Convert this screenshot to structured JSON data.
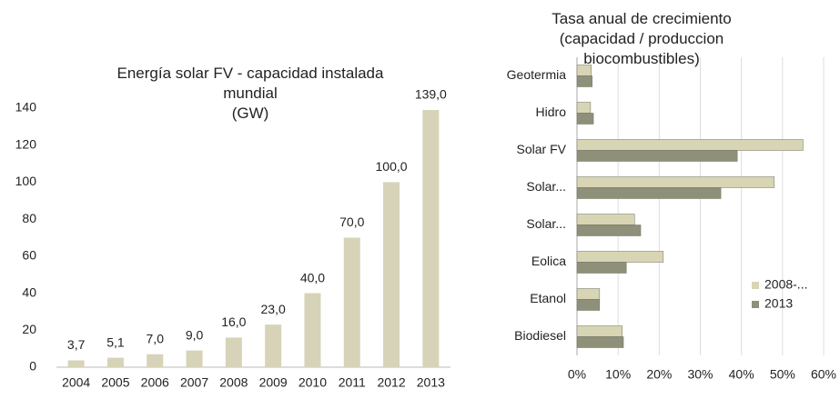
{
  "chart_data": [
    {
      "type": "bar",
      "title": "Energía solar FV - capacidad instalada\nmundial\n(GW)",
      "categories": [
        "2004",
        "2005",
        "2006",
        "2007",
        "2008",
        "2009",
        "2010",
        "2011",
        "2012",
        "2013"
      ],
      "values": [
        3.7,
        5.1,
        7,
        9,
        16,
        23,
        40,
        70,
        100,
        139
      ],
      "value_labels": [
        "3,7",
        "5,1",
        "7,0",
        "9,0",
        "16,0",
        "23,0",
        "40,0",
        "70,0",
        "100,0",
        "139,0"
      ],
      "color": "#d6d3b9",
      "ylim": [
        0,
        140
      ],
      "yticks": [
        0,
        20,
        40,
        60,
        80,
        100,
        120,
        140
      ],
      "grid": false
    },
    {
      "type": "hbar",
      "title": "Tasa anual de crecimiento\n(capacidad / produccion\nbiocombustibles)",
      "categories": [
        "Geotermia",
        "Hidro",
        "Solar FV",
        "Solar...",
        "Solar...",
        "Eolica",
        "Etanol",
        "Biodiesel"
      ],
      "series": [
        {
          "name": "2008-...",
          "color": "#d8d5b4",
          "values": [
            3.5,
            3.3,
            55,
            48,
            14,
            21,
            5.5,
            11
          ]
        },
        {
          "name": "2013",
          "color": "#8f9079",
          "values": [
            3.7,
            4,
            39,
            35,
            15.5,
            12,
            5.5,
            11.3
          ]
        }
      ],
      "xlim": [
        0,
        60
      ],
      "xticks": [
        {
          "value": 0,
          "label": "0%"
        },
        {
          "value": 10,
          "label": "10%"
        },
        {
          "value": 20,
          "label": "20%"
        },
        {
          "value": 30,
          "label": "30%"
        },
        {
          "value": 40,
          "label": "40%"
        },
        {
          "value": 50,
          "label": "50%"
        },
        {
          "value": 60,
          "label": "60%"
        }
      ],
      "grid": true
    }
  ]
}
